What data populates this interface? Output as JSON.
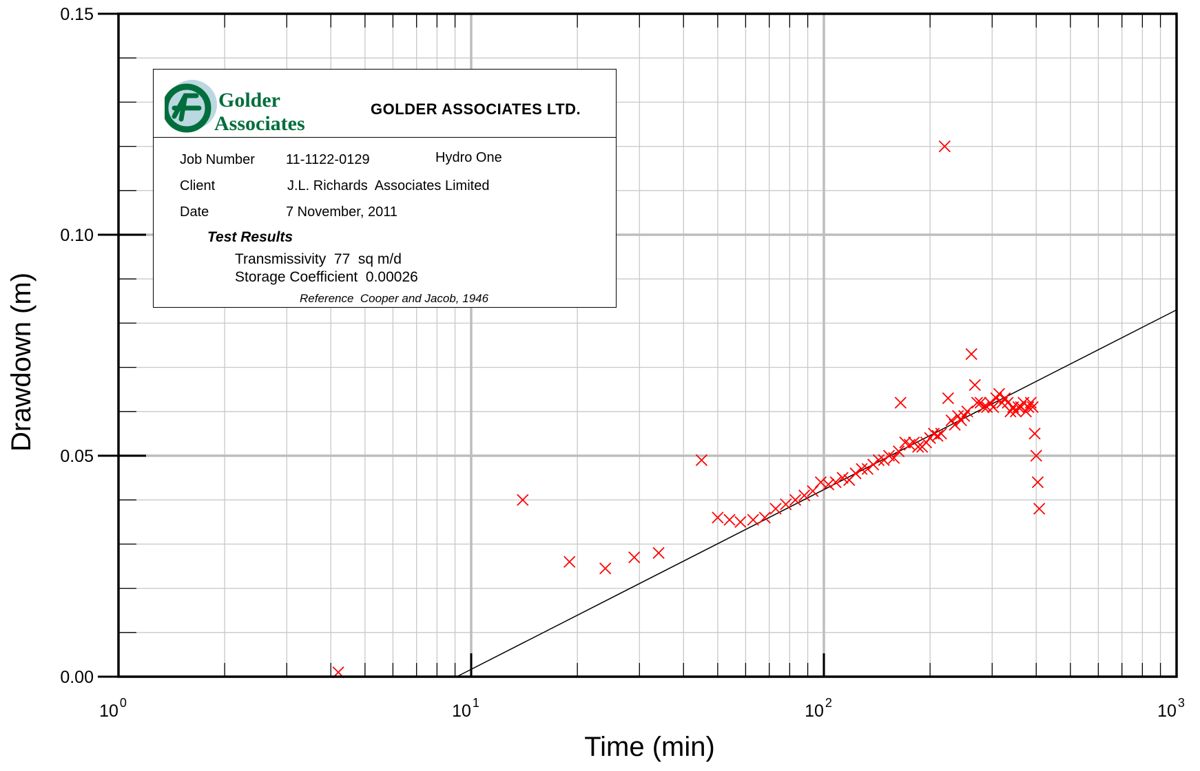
{
  "chart_data": {
    "type": "scatter",
    "title": "",
    "xlabel": "Time (min)",
    "ylabel": "Drawdown (m)",
    "xscale": "log",
    "xlim": [
      1,
      1000
    ],
    "ylim": [
      0,
      0.15
    ],
    "grid": true,
    "x_ticks": [
      {
        "value": 1,
        "base": "10",
        "exp": "0"
      },
      {
        "value": 10,
        "base": "10",
        "exp": "1"
      },
      {
        "value": 100,
        "base": "10",
        "exp": "2"
      },
      {
        "value": 1000,
        "base": "10",
        "exp": "3"
      }
    ],
    "y_ticks": [
      {
        "value": 0,
        "label": "0.00"
      },
      {
        "value": 0.05,
        "label": "0.05"
      },
      {
        "value": 0.1,
        "label": "0.10"
      },
      {
        "value": 0.15,
        "label": "0.15"
      }
    ],
    "marker_color": "#ff0000",
    "line_color": "#000000",
    "fit_line": {
      "x": [
        9.1,
        1000
      ],
      "y": [
        0.0,
        0.083
      ]
    },
    "points": [
      [
        4.2,
        0.001
      ],
      [
        14.0,
        0.04
      ],
      [
        19.0,
        0.026
      ],
      [
        24.0,
        0.0245
      ],
      [
        29.0,
        0.027
      ],
      [
        34.0,
        0.028
      ],
      [
        45.0,
        0.049
      ],
      [
        50.0,
        0.036
      ],
      [
        54.0,
        0.0355
      ],
      [
        58.0,
        0.035
      ],
      [
        63.0,
        0.0355
      ],
      [
        68.0,
        0.036
      ],
      [
        73.0,
        0.038
      ],
      [
        78.0,
        0.039
      ],
      [
        83.0,
        0.04
      ],
      [
        88.0,
        0.041
      ],
      [
        93.0,
        0.042
      ],
      [
        98.0,
        0.044
      ],
      [
        103.0,
        0.0435
      ],
      [
        108.0,
        0.044
      ],
      [
        113.0,
        0.045
      ],
      [
        118.0,
        0.0445
      ],
      [
        123.0,
        0.046
      ],
      [
        128.0,
        0.047
      ],
      [
        133.0,
        0.047
      ],
      [
        138.0,
        0.048
      ],
      [
        143.0,
        0.049
      ],
      [
        148.0,
        0.049
      ],
      [
        153.0,
        0.05
      ],
      [
        158.0,
        0.0495
      ],
      [
        163.0,
        0.051
      ],
      [
        165.0,
        0.062
      ],
      [
        170.0,
        0.053
      ],
      [
        175.0,
        0.0525
      ],
      [
        180.0,
        0.053
      ],
      [
        185.0,
        0.052
      ],
      [
        190.0,
        0.052
      ],
      [
        195.0,
        0.053
      ],
      [
        200.0,
        0.054
      ],
      [
        205.0,
        0.055
      ],
      [
        210.0,
        0.0545
      ],
      [
        215.0,
        0.055
      ],
      [
        220.0,
        0.12
      ],
      [
        225.0,
        0.063
      ],
      [
        230.0,
        0.058
      ],
      [
        235.0,
        0.057
      ],
      [
        240.0,
        0.059
      ],
      [
        245.0,
        0.058
      ],
      [
        250.0,
        0.059
      ],
      [
        255.0,
        0.06
      ],
      [
        262.0,
        0.073
      ],
      [
        268.0,
        0.066
      ],
      [
        272.0,
        0.062
      ],
      [
        278.0,
        0.062
      ],
      [
        284.0,
        0.061
      ],
      [
        290.0,
        0.061
      ],
      [
        296.0,
        0.062
      ],
      [
        302.0,
        0.061
      ],
      [
        308.0,
        0.063
      ],
      [
        314.0,
        0.064
      ],
      [
        320.0,
        0.062
      ],
      [
        326.0,
        0.063
      ],
      [
        332.0,
        0.062
      ],
      [
        338.0,
        0.06
      ],
      [
        344.0,
        0.061
      ],
      [
        350.0,
        0.06
      ],
      [
        356.0,
        0.061
      ],
      [
        362.0,
        0.061
      ],
      [
        368.0,
        0.062
      ],
      [
        374.0,
        0.06
      ],
      [
        380.0,
        0.061
      ],
      [
        386.0,
        0.062
      ],
      [
        391.0,
        0.061
      ],
      [
        396.0,
        0.055
      ],
      [
        400.0,
        0.05
      ],
      [
        404.0,
        0.044
      ],
      [
        408.0,
        0.038
      ]
    ]
  },
  "info_box": {
    "logo_line1": "Golder",
    "logo_line2": "Associates",
    "company": "GOLDER ASSOCIATES LTD.",
    "job_label": "Job Number",
    "job_value": "11-1122-0129",
    "job_extra": "Hydro One",
    "client_label": "Client",
    "client_value": "J.L. Richards  Associates Limited",
    "date_label": "Date",
    "date_value": "7 November, 2011",
    "results_title": "Test Results",
    "result1": "Transmissivity  77  sq m/d",
    "result2": "Storage Coefficient  0.00026",
    "reference": "Reference  Cooper and Jacob, 1946",
    "logo_green": "#006e3c",
    "logo_teal": "#3b8fa6"
  }
}
